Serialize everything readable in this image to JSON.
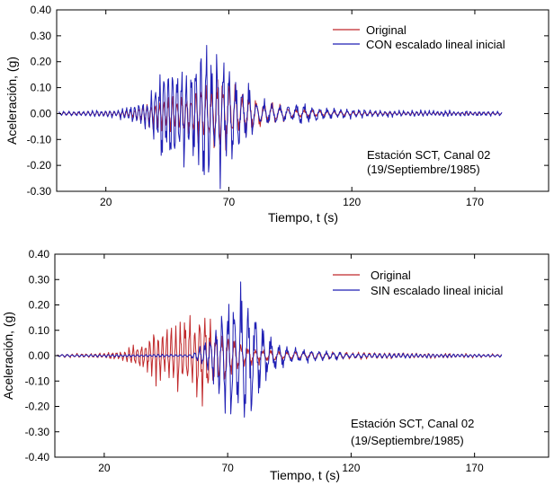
{
  "colors": {
    "original": "#c0282a",
    "scaled": "#1f1fb4",
    "axis": "#000000"
  },
  "chart_data": [
    {
      "type": "line",
      "title": "",
      "xlabel": "Tiempo, t (s)",
      "ylabel": "Aceleración, (g)",
      "xlim": [
        0,
        200
      ],
      "ylim": [
        -0.3,
        0.4
      ],
      "xticks": [
        20,
        70,
        120,
        170
      ],
      "xtick_labels": [
        "20",
        "70",
        "120",
        "170"
      ],
      "yticks": [
        -0.3,
        -0.2,
        -0.1,
        0.0,
        0.1,
        0.2,
        0.3,
        0.4
      ],
      "ytick_labels": [
        "-0.30",
        "-0.20",
        "-0.10",
        "0.00",
        "0.10",
        "0.20",
        "0.30",
        "0.40"
      ],
      "legend_position": "top-right",
      "annotation": [
        "Estación SCT, Canal 02",
        "(19/Septiembre/1985)"
      ],
      "series": [
        {
          "name": "Original",
          "color": "#c0282a",
          "t_start": 1,
          "t_end": 181,
          "dt": 0.25,
          "seed": 11,
          "envelope": [
            [
              1,
              0.005
            ],
            [
              25,
              0.01
            ],
            [
              33,
              0.02
            ],
            [
              40,
              0.05
            ],
            [
              50,
              0.07
            ],
            [
              60,
              0.1
            ],
            [
              67,
              0.13
            ],
            [
              75,
              0.08
            ],
            [
              85,
              0.04
            ],
            [
              95,
              0.02
            ],
            [
              110,
              0.01
            ],
            [
              130,
              0.005
            ],
            [
              181,
              0.004
            ]
          ]
        },
        {
          "name": "CON escalado lineal inicial",
          "color": "#1f1fb4",
          "t_start": 1,
          "t_end": 181,
          "dt": 0.25,
          "seed": 7,
          "envelope": [
            [
              1,
              0.008
            ],
            [
              20,
              0.012
            ],
            [
              30,
              0.025
            ],
            [
              38,
              0.06
            ],
            [
              43,
              0.2
            ],
            [
              50,
              0.18
            ],
            [
              57,
              0.2
            ],
            [
              62,
              0.26
            ],
            [
              68,
              0.2
            ],
            [
              75,
              0.13
            ],
            [
              82,
              0.05
            ],
            [
              90,
              0.03
            ],
            [
              100,
              0.035
            ],
            [
              110,
              0.02
            ],
            [
              130,
              0.012
            ],
            [
              160,
              0.01
            ],
            [
              181,
              0.008
            ]
          ]
        }
      ]
    },
    {
      "type": "line",
      "title": "",
      "xlabel": "Tiempo, t (s)",
      "ylabel": "Aceleración, (g)",
      "xlim": [
        0,
        200
      ],
      "ylim": [
        -0.4,
        0.4
      ],
      "xticks": [
        20,
        70,
        120,
        170
      ],
      "xtick_labels": [
        "20",
        "70",
        "120",
        "170"
      ],
      "yticks": [
        -0.4,
        -0.3,
        -0.2,
        -0.1,
        0.0,
        0.1,
        0.2,
        0.3,
        0.4
      ],
      "ytick_labels": [
        "-0.40",
        "-0.30",
        "-0.20",
        "-0.10",
        "0.00",
        "0.10",
        "0.20",
        "0.30",
        "0.40"
      ],
      "legend_position": "top-right",
      "annotation": [
        "Estación SCT, Canal 02",
        "(19/Septiembre/1985)"
      ],
      "series": [
        {
          "name": "Original",
          "color": "#c0282a",
          "t_start": 1,
          "t_end": 181,
          "dt": 0.25,
          "seed": 23,
          "envelope": [
            [
              1,
              0.006
            ],
            [
              20,
              0.01
            ],
            [
              28,
              0.02
            ],
            [
              35,
              0.05
            ],
            [
              42,
              0.1
            ],
            [
              50,
              0.12
            ],
            [
              58,
              0.16
            ],
            [
              65,
              0.12
            ],
            [
              72,
              0.06
            ],
            [
              80,
              0.03
            ],
            [
              95,
              0.015
            ],
            [
              181,
              0.006
            ]
          ]
        },
        {
          "name": "SIN escalado lineal inicial",
          "color": "#1f1fb4",
          "t_start": 1,
          "t_end": 181,
          "dt": 0.25,
          "seed": 5,
          "envelope": [
            [
              1,
              0.005
            ],
            [
              55,
              0.005
            ],
            [
              62,
              0.05
            ],
            [
              67,
              0.15
            ],
            [
              72,
              0.28
            ],
            [
              77,
              0.25
            ],
            [
              82,
              0.15
            ],
            [
              88,
              0.06
            ],
            [
              95,
              0.03
            ],
            [
              105,
              0.02
            ],
            [
              120,
              0.01
            ],
            [
              181,
              0.005
            ]
          ]
        }
      ]
    }
  ]
}
